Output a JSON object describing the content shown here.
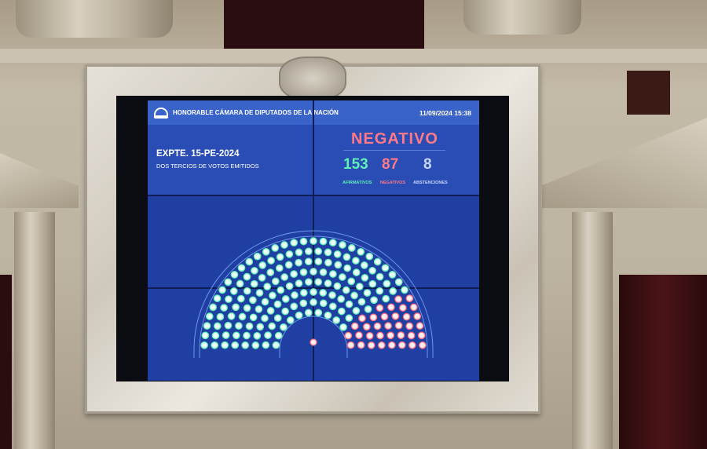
{
  "screen": {
    "institution": "HONORABLE CÁMARA DE DIPUTADOS DE LA NACIÓN",
    "datetime": "11/09/2024 15:38",
    "expediente": "EXPTE. 15-PE-2024",
    "majority_rule": "DOS TERCIOS DE VOTOS EMITIDOS",
    "result": "NEGATIVO",
    "counts": {
      "afirmativos": {
        "value": "153",
        "label": "AFIRMATIVOS"
      },
      "negativos": {
        "value": "87",
        "label": "NEGATIVOS"
      },
      "abstenciones": {
        "value": "8",
        "label": "ABSTENCIONES"
      }
    },
    "colors": {
      "afirmativo": "#5ef0b4",
      "negativo": "#ff6f7d",
      "abstencion": "#b8c4e6",
      "ausente": "#8e9bc4",
      "result": "#ff7a86",
      "screen_bg": "#1f3fa3"
    }
  }
}
